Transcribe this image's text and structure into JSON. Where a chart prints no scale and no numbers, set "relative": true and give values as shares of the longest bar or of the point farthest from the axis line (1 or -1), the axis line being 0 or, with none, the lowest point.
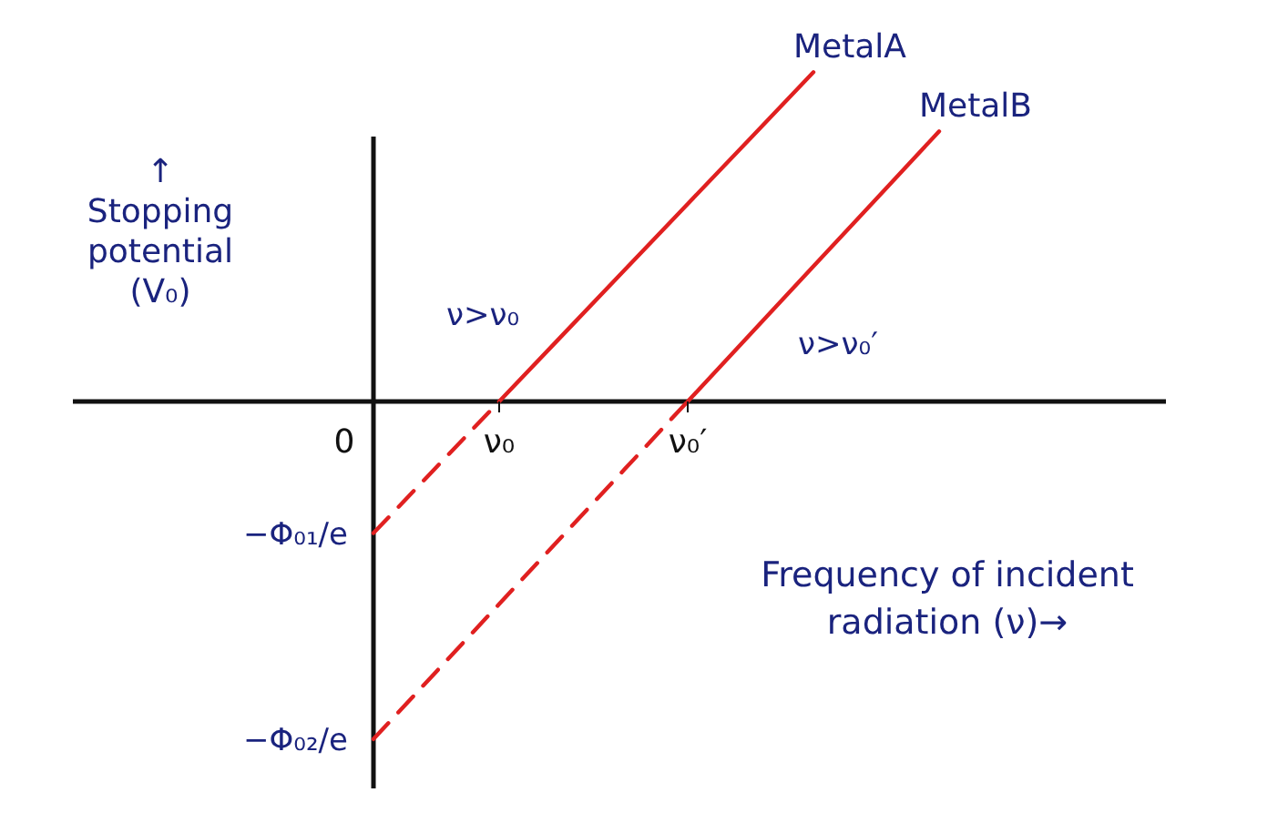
{
  "chart_data": {
    "type": "line",
    "relative": true,
    "xlabel": "Frequency of incident radiation (ν)→",
    "ylabel": "↑ Stopping potential (V₀)",
    "categories": [
      "0",
      null,
      "ν₀",
      null,
      null,
      "ν₀′",
      null,
      null,
      null,
      null
    ],
    "tick_labels": "x",
    "marker": "none",
    "series": [
      {
        "color": "#e02020",
        "line_style": "dashed",
        "values": [
          -0.39,
          -0.195,
          0,
          null,
          null,
          null,
          null,
          null,
          null,
          null
        ]
      },
      {
        "name": "MetalA",
        "color": "#e02020",
        "line_style": "solid",
        "values": [
          null,
          null,
          0,
          0.195,
          0.39,
          0.585,
          0.78,
          0.975,
          null,
          null
        ]
      },
      {
        "color": "#e02020",
        "line_style": "dashed",
        "values": [
          -1,
          -0.8,
          -0.6,
          -0.4,
          -0.2,
          0,
          null,
          null,
          null,
          null
        ]
      },
      {
        "name": "MetalB",
        "color": "#e02020",
        "line_style": "solid",
        "values": [
          null,
          null,
          null,
          null,
          null,
          0,
          0.2,
          0.4,
          0.6,
          0.8
        ]
      }
    ],
    "annotations": [
      "ν>ν₀",
      "ν>ν₀′",
      {
        "text": "−Φ₀₁/e",
        "x": "0",
        "y": -0.39
      },
      {
        "text": "−Φ₀₂/e",
        "x": "0",
        "y": -1
      }
    ]
  }
}
